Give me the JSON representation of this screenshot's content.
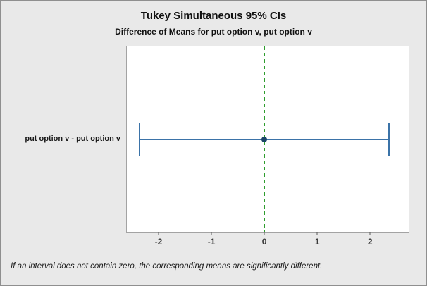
{
  "chart_data": {
    "type": "interval",
    "title": "Tukey Simultaneous 95% CIs",
    "subtitle": "Difference of Means for put option v, put option v",
    "footnote": "If an interval does not contain zero, the corresponding means are significantly different.",
    "intervals": [
      {
        "label": "put option v - put option v",
        "lower": -2.36,
        "center": 0,
        "upper": 2.36
      }
    ],
    "xticks": [
      -2,
      -1,
      0,
      1,
      2
    ],
    "xlim": [
      -2.6,
      2.73
    ],
    "reference_line_x": 0,
    "grid": false,
    "legend": "none",
    "colors": {
      "interval": "#3b73a8",
      "point": "#1b4668",
      "reference": "#2e9d2e",
      "background": "#e9e9e9",
      "plot_background": "#ffffff"
    }
  }
}
